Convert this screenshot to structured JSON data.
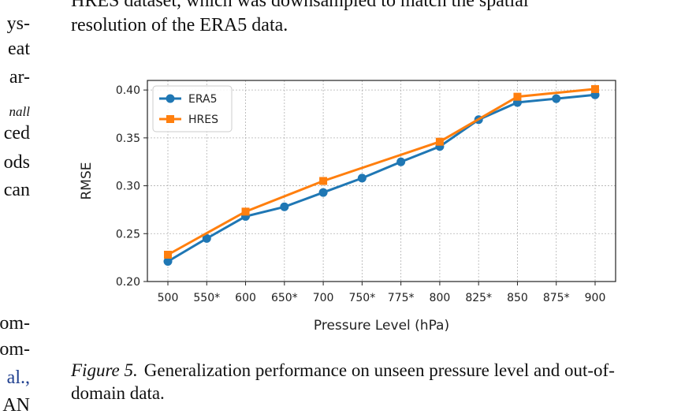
{
  "left_column": {
    "lines": [
      "ys-",
      "eat",
      "ar-",
      "nall",
      "ced",
      "ods",
      "can",
      "om-",
      "om-",
      "al.,",
      "AN"
    ]
  },
  "body": {
    "lines": [
      "HRES dataset, which was downsampled to match the spatial",
      "resolution of the ERA5 data."
    ]
  },
  "figure": {
    "caption_label": "Figure 5.",
    "caption_text": "Generalization performance on unseen pressure level and out-of-domain data."
  },
  "chart_data": {
    "type": "line",
    "categories": [
      "500",
      "550*",
      "600",
      "650*",
      "700",
      "750*",
      "775*",
      "800",
      "825*",
      "850",
      "875*",
      "900"
    ],
    "series": [
      {
        "name": "ERA5",
        "color": "#1f77b4",
        "marker": "circle",
        "values": [
          0.221,
          0.245,
          0.268,
          0.278,
          0.293,
          0.308,
          0.325,
          0.341,
          0.369,
          0.387,
          0.391,
          0.395
        ]
      },
      {
        "name": "HRES",
        "color": "#ff7f0e",
        "marker": "square",
        "values": [
          0.228,
          null,
          0.273,
          null,
          0.305,
          null,
          null,
          0.346,
          null,
          0.393,
          null,
          0.401
        ]
      }
    ],
    "xlabel": "Pressure Level (hPa)",
    "ylabel": "RMSE",
    "ylim": [
      0.2,
      0.41
    ],
    "yticks": [
      "0.20",
      "0.25",
      "0.30",
      "0.35",
      "0.40"
    ],
    "grid": true,
    "legend": "upper-left"
  }
}
